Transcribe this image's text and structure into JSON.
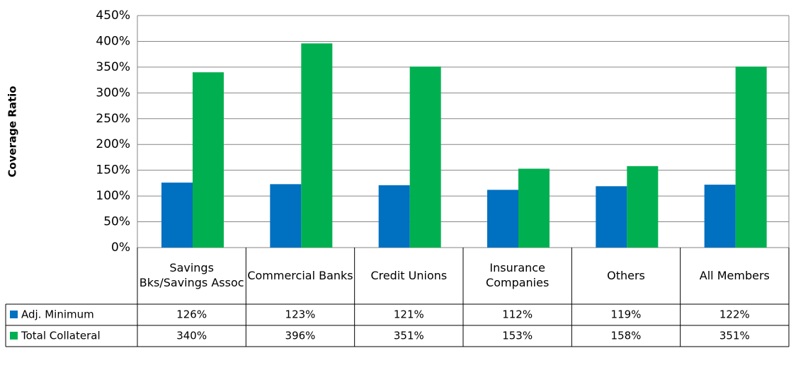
{
  "chart_data": {
    "type": "bar",
    "y_label": "Coverage Ratio",
    "categories": [
      "Savings Bks/Savings Assoc",
      "Commercial Banks",
      "Credit Unions",
      "Insurance Companies",
      "Others",
      "All Members"
    ],
    "series": [
      {
        "name": "Adj. Minimum",
        "color": "#0070c0",
        "values": [
          126,
          123,
          121,
          112,
          119,
          122
        ],
        "value_labels": [
          "126%",
          "123%",
          "121%",
          "112%",
          "119%",
          "122%"
        ]
      },
      {
        "name": "Total Collateral",
        "color": "#00b050",
        "values": [
          340,
          396,
          351,
          153,
          158,
          351
        ],
        "value_labels": [
          "340%",
          "396%",
          "351%",
          "153%",
          "158%",
          "351%"
        ]
      }
    ],
    "ylim": [
      0,
      450
    ],
    "yticks": [
      {
        "value": 0,
        "label": "0%"
      },
      {
        "value": 50,
        "label": "50%"
      },
      {
        "value": 100,
        "label": "100%"
      },
      {
        "value": 150,
        "label": "150%"
      },
      {
        "value": 200,
        "label": "200%"
      },
      {
        "value": 250,
        "label": "250%"
      },
      {
        "value": 300,
        "label": "300%"
      },
      {
        "value": 350,
        "label": "350%"
      },
      {
        "value": 400,
        "label": "400%"
      },
      {
        "value": 450,
        "label": "450%"
      }
    ],
    "grid": true
  }
}
